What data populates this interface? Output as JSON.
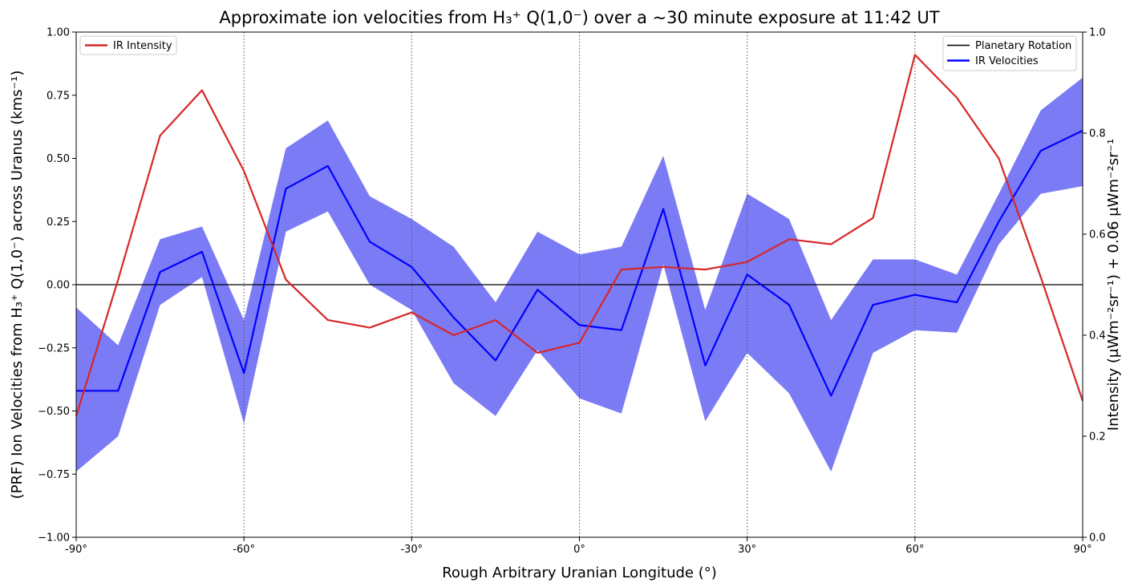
{
  "chart_data": {
    "type": "line",
    "title": "Approximate ion velocities from H₃⁺ Q(1,0⁻) over a ~30 minute exposure at 11:42 UT",
    "xlabel": "Rough Arbitrary Uranian Longitude (°)",
    "ylabel_left": "(PRF) Ion Velocities from H₃⁺ Q(1,0⁻) across Uranus (kms⁻¹)",
    "ylabel_right": "Intensity (μWm⁻²sr⁻¹) + 0.06 μWm⁻²sr⁻¹",
    "xlim": [
      -90,
      90
    ],
    "ylim_left": [
      -1.0,
      1.0
    ],
    "ylim_right": [
      0.0,
      1.0
    ],
    "x_ticks": [
      -90,
      -60,
      -30,
      0,
      30,
      60,
      90
    ],
    "x_tick_labels": [
      "-90°",
      "-60°",
      "-30°",
      "0°",
      "30°",
      "60°",
      "90°"
    ],
    "y_left_ticks": [
      -1.0,
      -0.75,
      -0.5,
      -0.25,
      0.0,
      0.25,
      0.5,
      0.75,
      1.0
    ],
    "y_left_tick_labels": [
      "−1.00",
      "−0.75",
      "−0.50",
      "−0.25",
      "0.00",
      "0.25",
      "0.50",
      "0.75",
      "1.00"
    ],
    "y_right_ticks": [
      0.0,
      0.2,
      0.4,
      0.6,
      0.8,
      1.0
    ],
    "y_right_tick_labels": [
      "0.0",
      "0.2",
      "0.4",
      "0.6",
      "0.8",
      "1.0"
    ],
    "grid": "vertical dotted lines at x ticks",
    "horizontal_reference": 0.0,
    "legends": [
      {
        "placement": "top-left",
        "entries": [
          {
            "name": "IR Intensity",
            "color": "#d62728"
          }
        ]
      },
      {
        "placement": "top-right",
        "entries": [
          {
            "name": "Planetary Rotation",
            "color": "#000000"
          },
          {
            "name": "IR Velocities",
            "color": "#0000ff"
          }
        ]
      }
    ],
    "series": [
      {
        "name": "IR Velocities",
        "axis": "left",
        "color": "#0000ff",
        "band_color": "#7b7bf5",
        "x": [
          -90,
          -82.5,
          -75,
          -67.5,
          -60,
          -52.5,
          -45,
          -37.5,
          -30,
          -22.5,
          -15,
          -7.5,
          0,
          7.5,
          15,
          22.5,
          30,
          37.5,
          45,
          52.5,
          60,
          67.5,
          75,
          82.5,
          90
        ],
        "y": [
          -0.42,
          -0.42,
          0.05,
          0.13,
          -0.35,
          0.38,
          0.47,
          0.17,
          0.07,
          -0.13,
          -0.3,
          -0.02,
          -0.16,
          -0.18,
          0.3,
          -0.32,
          0.04,
          -0.08,
          -0.44,
          -0.08,
          -0.04,
          -0.07,
          0.25,
          0.53,
          0.61
        ],
        "lower": [
          -0.74,
          -0.6,
          -0.08,
          0.03,
          -0.55,
          0.21,
          0.29,
          0.0,
          -0.1,
          -0.39,
          -0.52,
          -0.26,
          -0.45,
          -0.51,
          0.08,
          -0.54,
          -0.27,
          -0.43,
          -0.74,
          -0.27,
          -0.18,
          -0.19,
          0.16,
          0.36,
          0.39
        ],
        "upper": [
          -0.09,
          -0.24,
          0.18,
          0.23,
          -0.14,
          0.54,
          0.65,
          0.35,
          0.26,
          0.15,
          -0.07,
          0.21,
          0.12,
          0.15,
          0.51,
          -0.1,
          0.36,
          0.26,
          -0.14,
          0.1,
          0.1,
          0.04,
          0.36,
          0.69,
          0.82
        ]
      },
      {
        "name": "IR Intensity",
        "axis": "right",
        "color": "#d62728",
        "x": [
          -90,
          -82.5,
          -75,
          -67.5,
          -60,
          -52.5,
          -45,
          -37.5,
          -30,
          -22.5,
          -15,
          -7.5,
          0,
          7.5,
          15,
          22.5,
          30,
          37.5,
          45,
          52.5,
          60,
          67.5,
          75,
          82.5,
          90
        ],
        "y": [
          0.24,
          0.51,
          0.795,
          0.885,
          0.725,
          0.51,
          0.43,
          0.415,
          0.445,
          0.4,
          0.43,
          0.365,
          0.385,
          0.53,
          0.535,
          0.53,
          0.545,
          0.59,
          0.58,
          0.632,
          0.955,
          0.87,
          0.75,
          0.515,
          0.27
        ]
      },
      {
        "name": "Planetary Rotation",
        "axis": "left",
        "color": "#000000",
        "x": [
          -90,
          90
        ],
        "y": [
          0.0,
          0.0
        ]
      }
    ]
  }
}
